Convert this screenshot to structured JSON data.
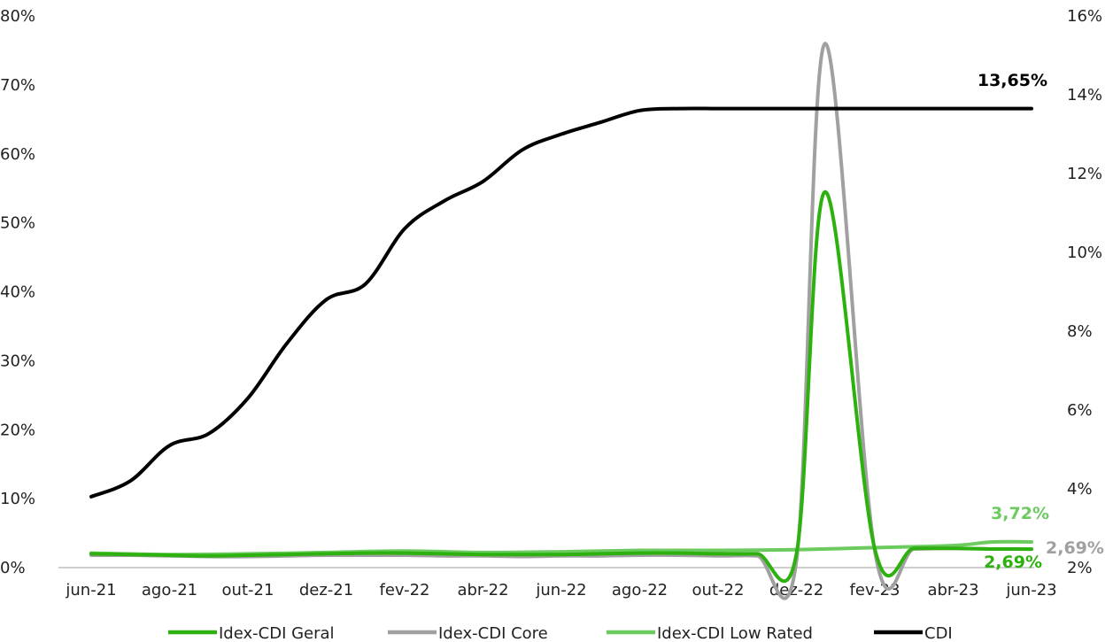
{
  "chart_data": {
    "type": "line",
    "title": "",
    "xlabel": "",
    "ylabel": "",
    "y_left_lim": [
      0,
      80
    ],
    "y_right_lim": [
      2,
      16
    ],
    "y_left_ticks": [
      "0%",
      "10%",
      "20%",
      "30%",
      "40%",
      "50%",
      "60%",
      "70%",
      "80%"
    ],
    "y_right_ticks": [
      "2%",
      "4%",
      "6%",
      "8%",
      "10%",
      "12%",
      "14%",
      "16%"
    ],
    "x_ticks": [
      "jun-21",
      "ago-21",
      "out-21",
      "dez-21",
      "fev-22",
      "abr-22",
      "jun-22",
      "ago-22",
      "out-22",
      "dez-22",
      "fev-23",
      "abr-23",
      "jun-23"
    ],
    "grid": false,
    "legend_position": "bottom",
    "x_start": "2021-06",
    "x_end": "2023-06",
    "series": [
      {
        "name": "Idex-CDI Geral",
        "axis": "left",
        "color": "#2DB10F",
        "end_label": "2,69%",
        "points": [
          [
            "2021-06",
            2.0
          ],
          [
            "2021-07",
            1.9
          ],
          [
            "2021-08",
            1.8
          ],
          [
            "2021-09",
            1.7
          ],
          [
            "2021-10",
            1.8
          ],
          [
            "2021-11",
            1.9
          ],
          [
            "2021-12",
            2.0
          ],
          [
            "2022-01",
            2.1
          ],
          [
            "2022-02",
            2.1
          ],
          [
            "2022-03",
            2.0
          ],
          [
            "2022-04",
            1.9
          ],
          [
            "2022-05",
            1.9
          ],
          [
            "2022-06",
            1.9
          ],
          [
            "2022-07",
            2.0
          ],
          [
            "2022-08",
            2.1
          ],
          [
            "2022-09",
            2.1
          ],
          [
            "2022-10",
            2.0
          ],
          [
            "2022-11",
            2.0
          ],
          [
            "2022-12",
            2.0
          ],
          [
            "2022-12-23",
            54.5
          ],
          [
            "2023-02",
            2.7
          ],
          [
            "2023-03",
            2.8
          ],
          [
            "2023-04",
            2.8
          ],
          [
            "2023-05",
            2.7
          ],
          [
            "2023-06",
            2.69
          ]
        ]
      },
      {
        "name": "Idex-CDI Core",
        "axis": "left",
        "color": "#A0A0A0",
        "end_label": "2,69%",
        "points": [
          [
            "2021-06",
            1.8
          ],
          [
            "2021-07",
            1.8
          ],
          [
            "2021-08",
            1.7
          ],
          [
            "2021-09",
            1.6
          ],
          [
            "2021-10",
            1.6
          ],
          [
            "2021-11",
            1.7
          ],
          [
            "2021-12",
            1.8
          ],
          [
            "2022-01",
            1.8
          ],
          [
            "2022-02",
            1.8
          ],
          [
            "2022-03",
            1.7
          ],
          [
            "2022-04",
            1.7
          ],
          [
            "2022-05",
            1.6
          ],
          [
            "2022-06",
            1.7
          ],
          [
            "2022-07",
            1.7
          ],
          [
            "2022-08",
            1.8
          ],
          [
            "2022-09",
            1.8
          ],
          [
            "2022-10",
            1.7
          ],
          [
            "2022-11",
            1.7
          ],
          [
            "2022-12",
            1.0
          ],
          [
            "2022-12-23",
            76.0
          ],
          [
            "2023-02",
            2.4
          ],
          [
            "2023-03",
            2.7
          ],
          [
            "2023-04",
            2.8
          ],
          [
            "2023-05",
            2.7
          ],
          [
            "2023-06",
            2.69
          ]
        ]
      },
      {
        "name": "Idex-CDI Low Rated",
        "axis": "left",
        "color": "#6CCB5F",
        "end_label": "3,72%",
        "points": [
          [
            "2021-06",
            2.1
          ],
          [
            "2021-08",
            1.9
          ],
          [
            "2021-10",
            2.0
          ],
          [
            "2021-12",
            2.2
          ],
          [
            "2022-02",
            2.4
          ],
          [
            "2022-04",
            2.2
          ],
          [
            "2022-06",
            2.3
          ],
          [
            "2022-08",
            2.5
          ],
          [
            "2022-10",
            2.5
          ],
          [
            "2022-12",
            2.6
          ],
          [
            "2023-02",
            2.9
          ],
          [
            "2023-04",
            3.2
          ],
          [
            "2023-05",
            3.72
          ],
          [
            "2023-06",
            3.72
          ]
        ]
      },
      {
        "name": "CDI",
        "axis": "right",
        "color": "#000000",
        "end_label": "13,65%",
        "points": [
          [
            "2021-06",
            3.8
          ],
          [
            "2021-07",
            4.2
          ],
          [
            "2021-08",
            5.1
          ],
          [
            "2021-09",
            5.4
          ],
          [
            "2021-10",
            6.3
          ],
          [
            "2021-11",
            7.7
          ],
          [
            "2021-12",
            8.8
          ],
          [
            "2022-01",
            9.2
          ],
          [
            "2022-02",
            10.6
          ],
          [
            "2022-03",
            11.3
          ],
          [
            "2022-04",
            11.8
          ],
          [
            "2022-05",
            12.6
          ],
          [
            "2022-06",
            13.0
          ],
          [
            "2022-07",
            13.3
          ],
          [
            "2022-08",
            13.6
          ],
          [
            "2022-09",
            13.65
          ],
          [
            "2022-10",
            13.65
          ],
          [
            "2022-11",
            13.65
          ],
          [
            "2022-12",
            13.65
          ],
          [
            "2023-01",
            13.65
          ],
          [
            "2023-02",
            13.65
          ],
          [
            "2023-03",
            13.65
          ],
          [
            "2023-04",
            13.65
          ],
          [
            "2023-05",
            13.65
          ],
          [
            "2023-06",
            13.65
          ]
        ]
      }
    ]
  }
}
